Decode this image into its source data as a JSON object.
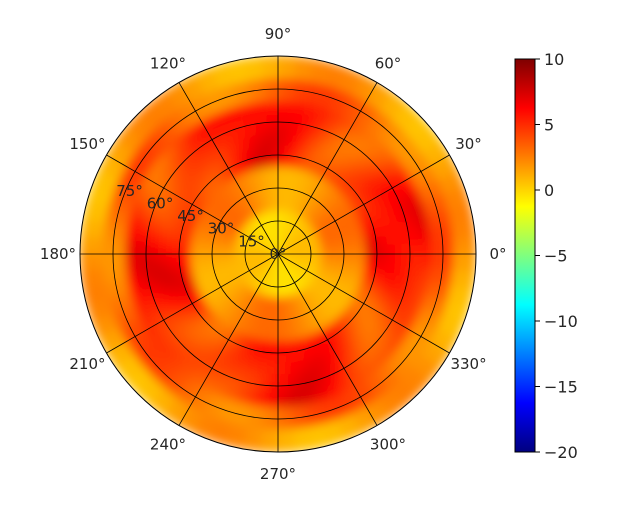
{
  "chart_data": {
    "type": "heatmap",
    "projection": "polar",
    "title": "",
    "angular_ticks": [
      "0°",
      "30°",
      "60°",
      "90°",
      "120°",
      "150°",
      "180°",
      "210°",
      "240°",
      "270°",
      "300°",
      "330°"
    ],
    "angular_tick_values": [
      0,
      30,
      60,
      90,
      120,
      150,
      180,
      210,
      240,
      270,
      300,
      330
    ],
    "radial_ticks": [
      "0°",
      "15°",
      "30°",
      "45°",
      "60°",
      "75°"
    ],
    "radial_tick_values": [
      0,
      15,
      30,
      45,
      60,
      75
    ],
    "radial_max": 90,
    "grid": true,
    "colormap": "jet",
    "colorbar": {
      "min": -20,
      "max": 10,
      "ticks": [
        "10",
        "5",
        "0",
        "−5",
        "−10",
        "−15",
        "−20"
      ],
      "tick_values": [
        10,
        5,
        0,
        -5,
        -10,
        -15,
        -20
      ],
      "colors": [
        "#00007f",
        "#0000ff",
        "#007fff",
        "#00ffff",
        "#7fff7f",
        "#ffff00",
        "#ff7f00",
        "#ff0000",
        "#7f0000"
      ]
    },
    "value_range_shown": [
      -2,
      7
    ],
    "description_pattern": "center region near -1 to 1; rings of ~5 at radii 40-70; outer rim near 1-2",
    "regions": [
      {
        "r_range": [
          0,
          25
        ],
        "theta_range": [
          0,
          360
        ],
        "value": 0.5
      },
      {
        "r_range": [
          25,
          40
        ],
        "theta_range": [
          0,
          360
        ],
        "value": 2.5
      },
      {
        "r_range": [
          40,
          70
        ],
        "theta_range": [
          0,
          360
        ],
        "value": 5.0
      },
      {
        "r_range": [
          70,
          80
        ],
        "theta_range": [
          0,
          360
        ],
        "value": 3.5
      },
      {
        "r_range": [
          80,
          90
        ],
        "theta_range": [
          0,
          360
        ],
        "value": 1.5
      }
    ]
  }
}
